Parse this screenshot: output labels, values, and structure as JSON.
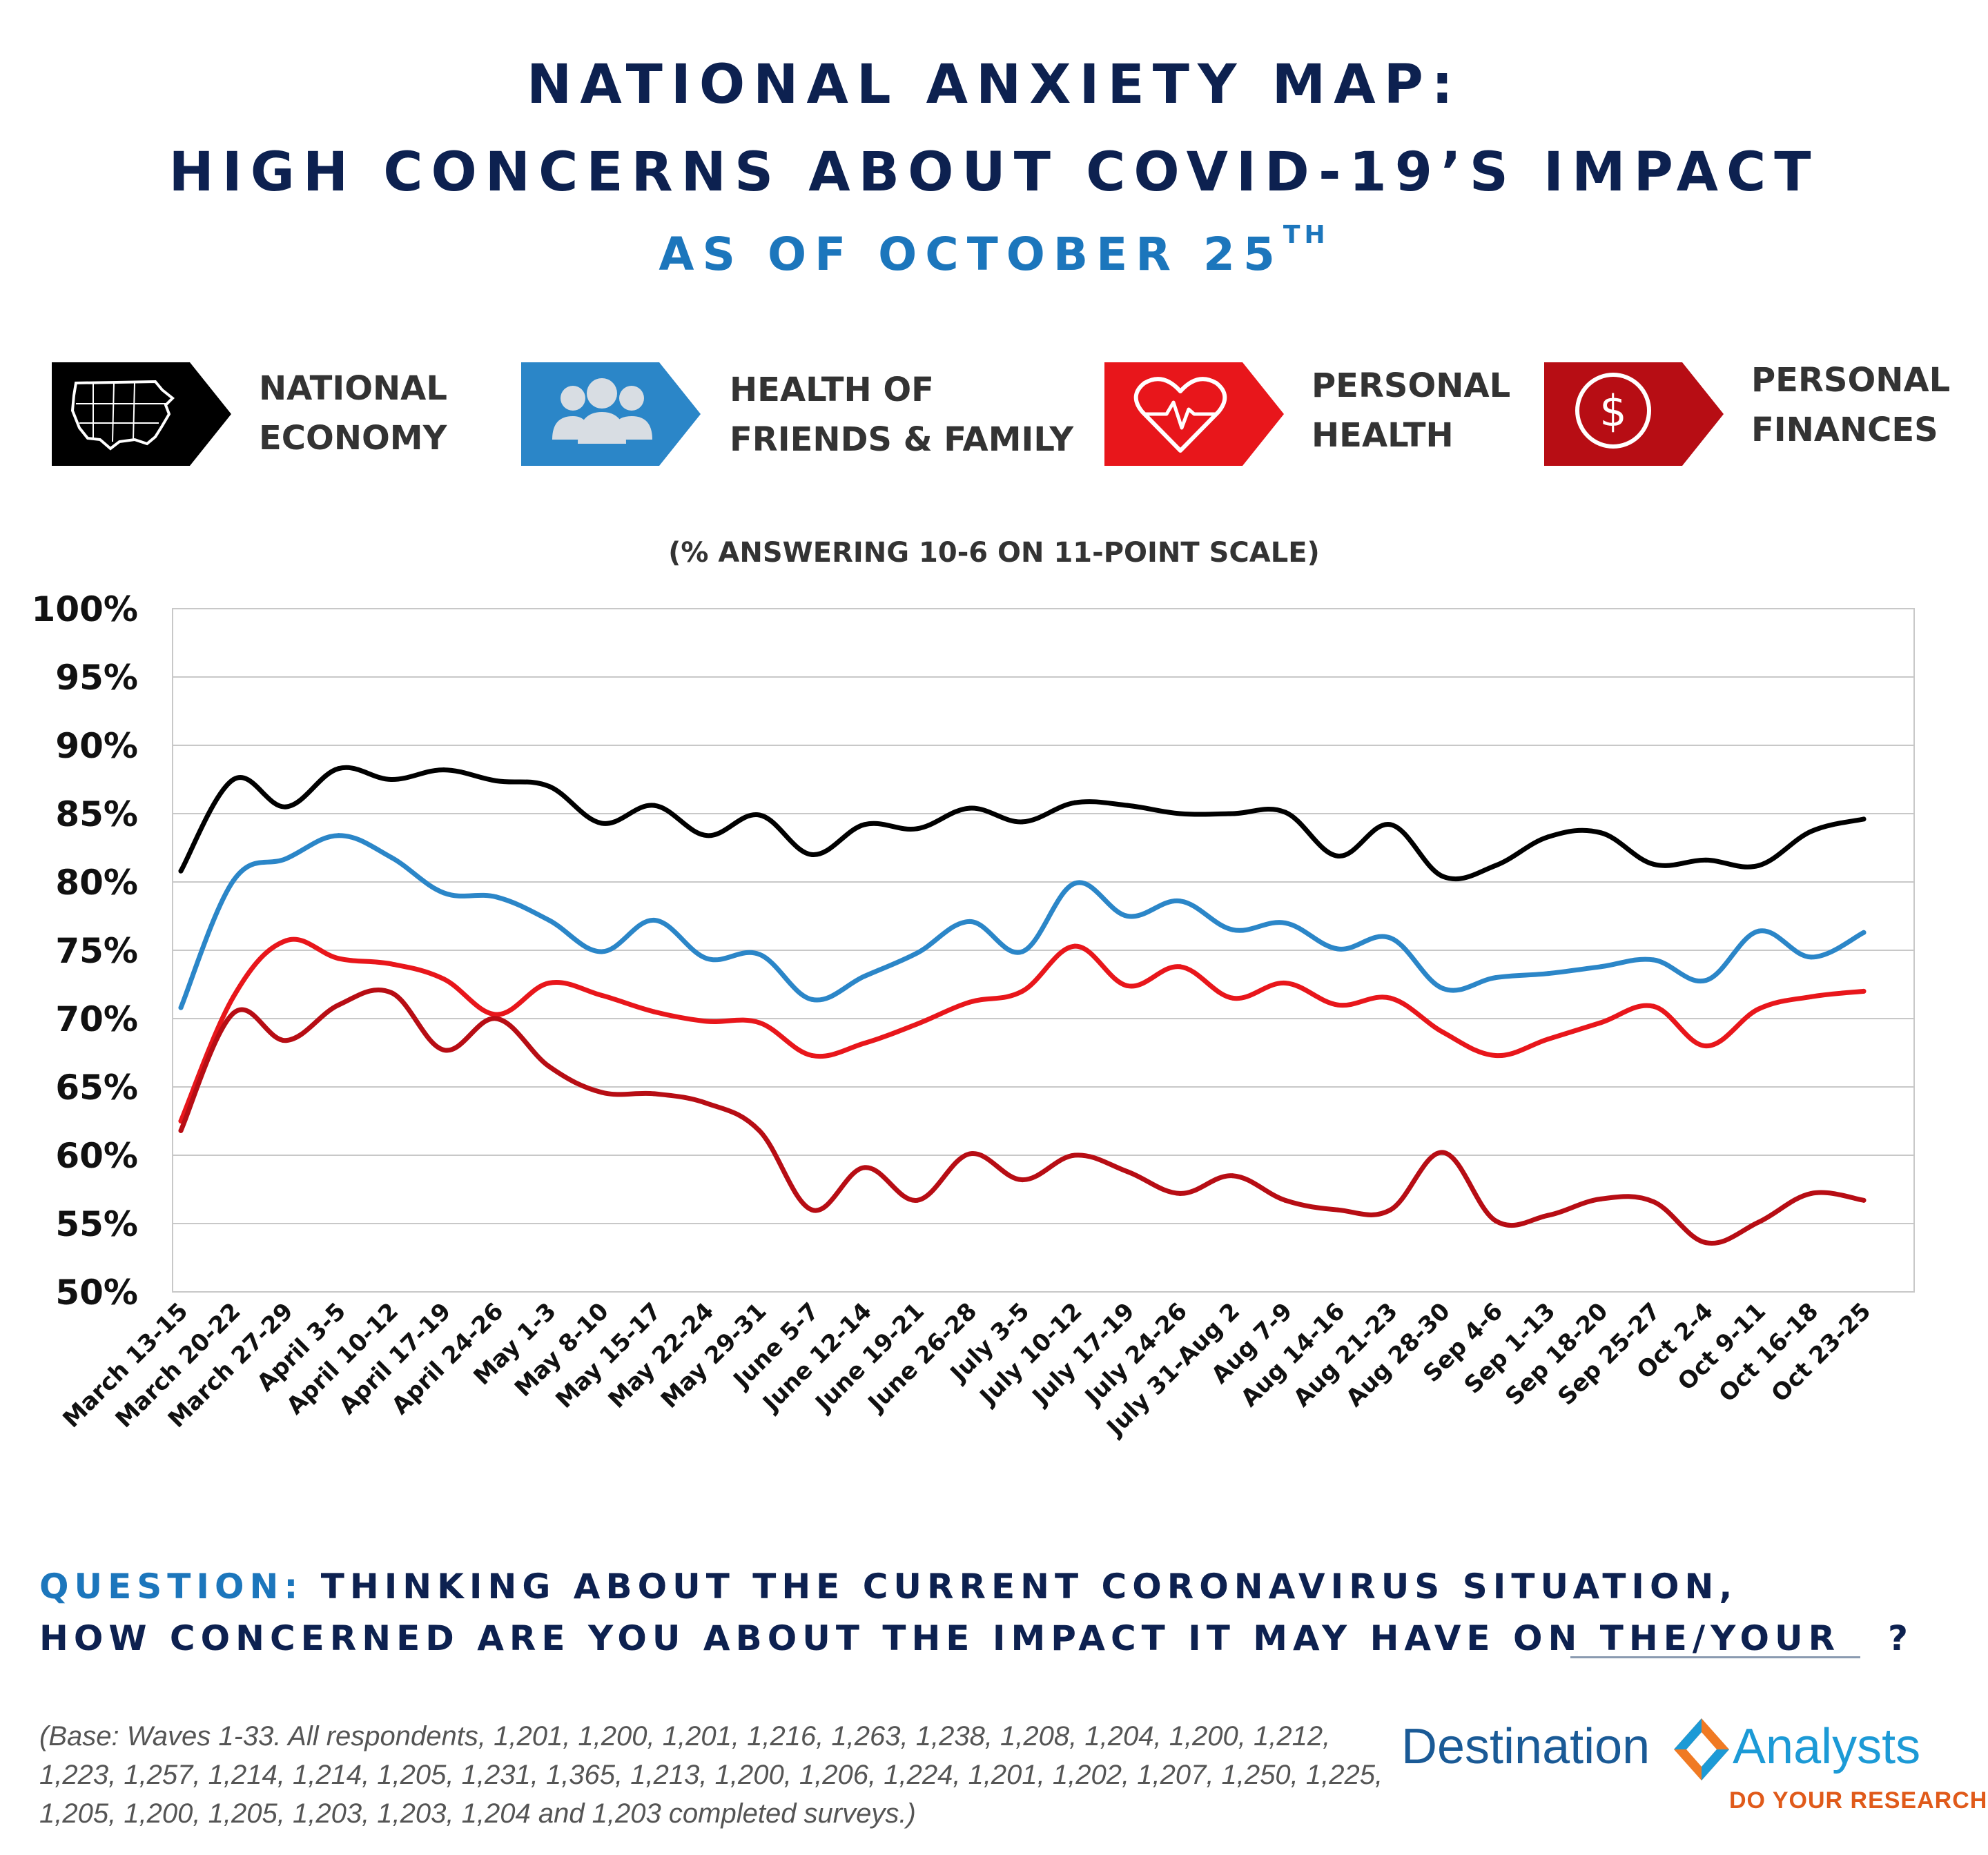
{
  "header": {
    "title_line1": "NATIONAL ANXIETY MAP:",
    "title_line2": "HIGH CONCERNS ABOUT COVID-19’S IMPACT",
    "subtitle_main": "AS OF OCTOBER 25",
    "subtitle_sup": "TH"
  },
  "legend": [
    {
      "line1": "NATIONAL",
      "line2": "ECONOMY",
      "color": "#000000",
      "icon": "usa-map-icon"
    },
    {
      "line1": "HEALTH OF",
      "line2": "FRIENDS & FAMILY",
      "color": "#2b86c8",
      "icon": "people-group-icon"
    },
    {
      "line1": "PERSONAL",
      "line2": "HEALTH",
      "color": "#e8161b",
      "icon": "heart-pulse-icon"
    },
    {
      "line1": "PERSONAL",
      "line2": "FINANCES",
      "color": "#b70d14",
      "icon": "dollar-coin-icon"
    }
  ],
  "chart_subtitle": "(% ANSWERING 10-6 ON 11-POINT SCALE)",
  "chart_data": {
    "type": "line",
    "ylim": [
      50,
      100
    ],
    "yticks": [
      "50%",
      "55%",
      "60%",
      "65%",
      "70%",
      "75%",
      "80%",
      "85%",
      "90%",
      "95%",
      "100%"
    ],
    "grid": true,
    "categories": [
      "March 13-15",
      "March 20-22",
      "March 27-29",
      "April 3-5",
      "April 10-12",
      "April 17-19",
      "April 24-26",
      "May 1-3",
      "May 8-10",
      "May 15-17",
      "May 22-24",
      "May 29-31",
      "June 5-7",
      "June 12-14",
      "June 19-21",
      "June 26-28",
      "July 3-5",
      "July 10-12",
      "July 17-19",
      "July 24-26",
      "July 31-Aug 2",
      "Aug 7-9",
      "Aug 14-16",
      "Aug 21-23",
      "Aug 28-30",
      "Sep 4-6",
      "Sep 1-13",
      "Sep 18-20",
      "Sep 25-27",
      "Oct 2-4",
      "Oct 9-11",
      "Oct 16-18",
      "Oct 23-25"
    ],
    "series": [
      {
        "key": "national_economy",
        "color": "#000000",
        "values": [
          80.8,
          87.5,
          85.5,
          88.3,
          87.5,
          88.2,
          87.4,
          87.0,
          84.3,
          85.6,
          83.4,
          84.9,
          82.0,
          84.2,
          83.9,
          85.4,
          84.4,
          85.8,
          85.6,
          85.0,
          85.0,
          85.1,
          81.9,
          84.2,
          80.4,
          81.2,
          83.3,
          83.6,
          81.3,
          81.6,
          81.2,
          83.7,
          84.6
        ]
      },
      {
        "key": "health_friends_family",
        "color": "#2b86c8",
        "values": [
          70.8,
          80.1,
          81.7,
          83.4,
          81.8,
          79.2,
          78.9,
          77.2,
          74.9,
          77.2,
          74.4,
          74.7,
          71.4,
          73.1,
          74.8,
          77.1,
          74.9,
          79.9,
          77.5,
          78.6,
          76.5,
          77.0,
          75.1,
          75.9,
          72.2,
          73.0,
          73.3,
          73.8,
          74.3,
          72.8,
          76.4,
          74.5,
          76.3
        ]
      },
      {
        "key": "personal_health",
        "color": "#e8161b",
        "values": [
          62.5,
          71.6,
          75.7,
          74.4,
          74.0,
          72.9,
          70.3,
          72.6,
          71.7,
          70.5,
          69.8,
          69.7,
          67.3,
          68.2,
          69.6,
          71.2,
          72.0,
          75.3,
          72.4,
          73.8,
          71.5,
          72.6,
          71.0,
          71.5,
          69.0,
          67.3,
          68.5,
          69.7,
          70.9,
          68.0,
          70.7,
          71.6,
          72.0
        ]
      },
      {
        "key": "personal_finances",
        "color": "#b70d14",
        "values": [
          61.8,
          70.4,
          68.4,
          71.0,
          71.9,
          67.7,
          70.0,
          66.5,
          64.6,
          64.5,
          63.8,
          61.8,
          56.0,
          59.1,
          56.7,
          60.1,
          58.2,
          60.0,
          58.8,
          57.2,
          58.5,
          56.7,
          56.0,
          56.0,
          60.2,
          55.2,
          55.6,
          56.8,
          56.6,
          53.6,
          55.1,
          57.2,
          56.7
        ]
      }
    ]
  },
  "question": {
    "label": "QUESTION:",
    "line1": "THINKING ABOUT THE CURRENT CORONAVIRUS SITUATION,",
    "line2": "HOW CONCERNED ARE YOU ABOUT THE IMPACT IT MAY HAVE ON THE/YOUR",
    "end_mark": "?"
  },
  "base_note": "(Base: Waves 1-33. All respondents, 1,201, 1,200, 1,201, 1,216, 1,263, 1,238, 1,208, 1,204, 1,200, 1,212, 1,223, 1,257, 1,214, 1,214, 1,205, 1,231, 1,365, 1,213, 1,200, 1,206, 1,224, 1,201, 1,202, 1,207, 1,250, 1,225, 1,205, 1,200, 1,205, 1,203, 1,203, 1,204 and 1,203 completed surveys.)",
  "logo": {
    "left_word": "Destination",
    "right_word": "Analysts",
    "tagline": "DO YOUR RESEARCH"
  }
}
